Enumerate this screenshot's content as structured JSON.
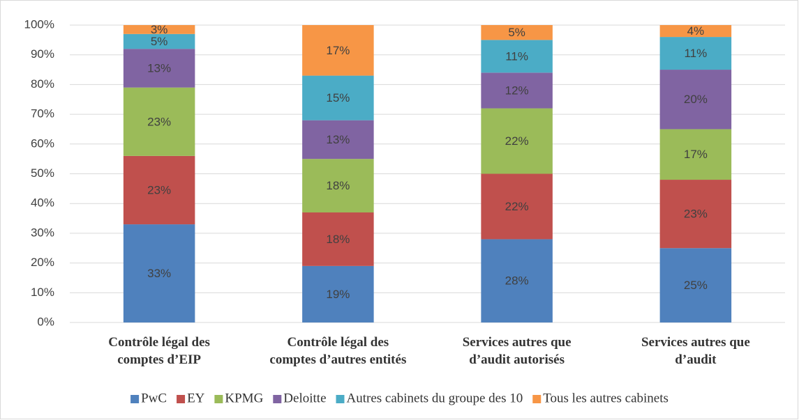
{
  "chart_data": {
    "type": "stacked_bar",
    "categories": [
      "Contrôle légal des\ncomptes d’EIP",
      "Contrôle légal des\ncomptes d’autres entités",
      "Services autres que\nd’audit autorisés",
      "Services autres que\nd’audit"
    ],
    "series": [
      {
        "name": "PwC",
        "color": "#4f81bd",
        "values": [
          33,
          19,
          28,
          25
        ],
        "value_labels": [
          "33%",
          "19%",
          "28%",
          "25%"
        ]
      },
      {
        "name": "EY",
        "color": "#c0504d",
        "values": [
          23,
          18,
          22,
          23
        ],
        "value_labels": [
          "23%",
          "18%",
          "22%",
          "23%"
        ]
      },
      {
        "name": "KPMG",
        "color": "#9bbb59",
        "values": [
          23,
          18,
          22,
          17
        ],
        "value_labels": [
          "23%",
          "18%",
          "22%",
          "17%"
        ]
      },
      {
        "name": "Deloitte",
        "color": "#8064a2",
        "values": [
          13,
          13,
          12,
          20
        ],
        "value_labels": [
          "13%",
          "13%",
          "12%",
          "20%"
        ]
      },
      {
        "name": "Autres cabinets du groupe des 10",
        "color": "#4bacc6",
        "values": [
          5,
          15,
          11,
          11
        ],
        "value_labels": [
          "5%",
          "15%",
          "11%",
          "11%"
        ]
      },
      {
        "name": "Tous les autres cabinets",
        "color": "#f79646",
        "values": [
          3,
          17,
          5,
          4
        ],
        "value_labels": [
          "3%",
          "17%",
          "5%",
          "4%"
        ]
      }
    ],
    "ylim": [
      0,
      100
    ],
    "yticks": [
      {
        "value": 0,
        "label": "0%"
      },
      {
        "value": 10,
        "label": "10%"
      },
      {
        "value": 20,
        "label": "20%"
      },
      {
        "value": 30,
        "label": "30%"
      },
      {
        "value": 40,
        "label": "40%"
      },
      {
        "value": 50,
        "label": "50%"
      },
      {
        "value": 60,
        "label": "60%"
      },
      {
        "value": 70,
        "label": "70%"
      },
      {
        "value": 80,
        "label": "80%"
      },
      {
        "value": 90,
        "label": "90%"
      },
      {
        "value": 100,
        "label": "100%"
      }
    ],
    "grid": true,
    "legend": "bottom"
  }
}
